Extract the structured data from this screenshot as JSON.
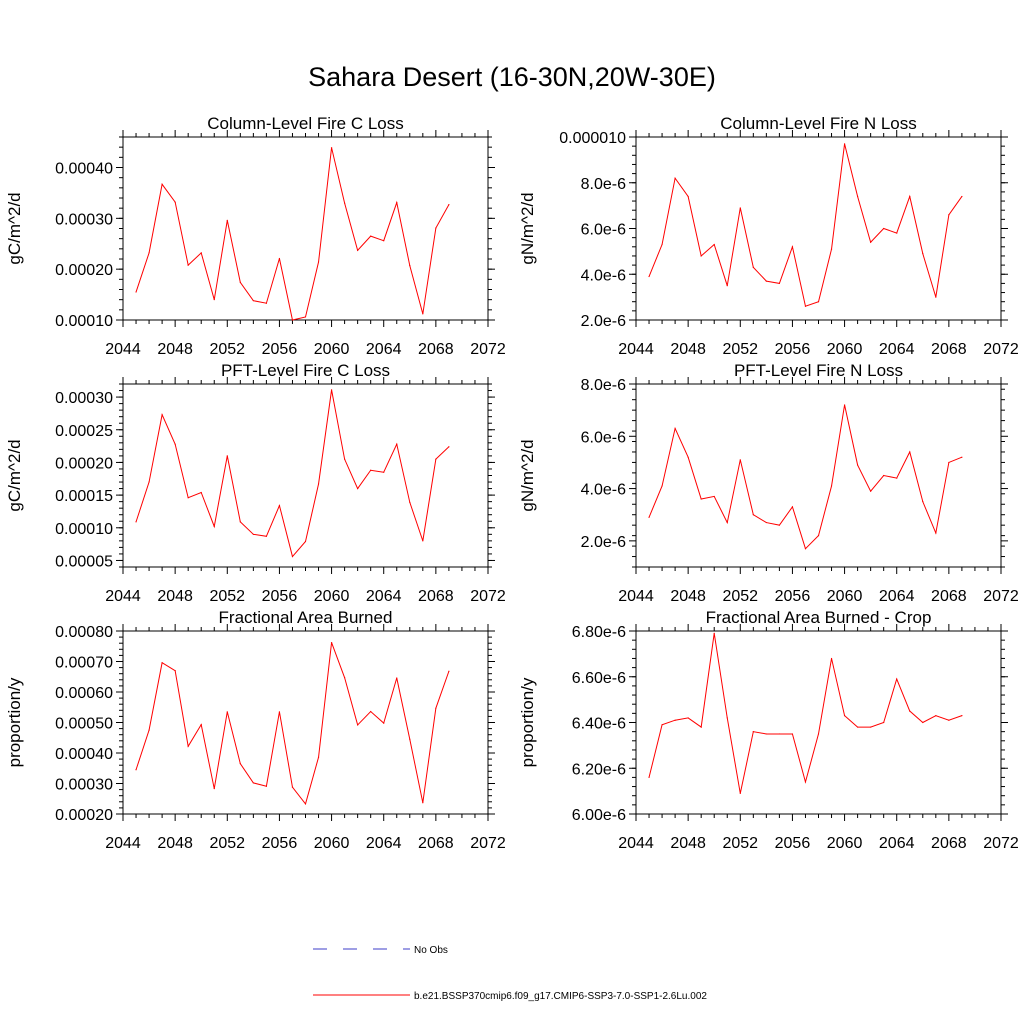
{
  "main_title": "Sahara Desert (16-30N,20W-30E)",
  "legend": {
    "obs_label": "No Obs",
    "model_label": "b.e21.BSSP370cmip6.f09_g17.CMIP6-SSP3-7.0-SSP1-2.6Lu.002",
    "obs_color": "#3c3cc8",
    "model_color": "#ff0000"
  },
  "chart_data": [
    {
      "type": "line",
      "title": "Column-Level Fire C Loss",
      "ylabel": "gC/m^2/d",
      "xlabel": "",
      "xlim": [
        2044,
        2072
      ],
      "ylim": [
        0.0001,
        0.00046
      ],
      "xticks": [
        2044,
        2048,
        2052,
        2056,
        2060,
        2064,
        2068,
        2072
      ],
      "yticks": [
        0.0001,
        0.0002,
        0.0003,
        0.0004
      ],
      "ytick_labels": [
        "0.00010",
        "0.00020",
        "0.00030",
        "0.00040"
      ],
      "x": [
        2045,
        2046,
        2047,
        2048,
        2049,
        2050,
        2051,
        2052,
        2053,
        2054,
        2055,
        2056,
        2057,
        2058,
        2059,
        2060,
        2061,
        2062,
        2063,
        2064,
        2065,
        2066,
        2067,
        2068,
        2069
      ],
      "series": [
        {
          "color": "#ff0000",
          "values": [
            0.000155,
            0.000232,
            0.000367,
            0.000332,
            0.000208,
            0.000232,
            0.00014,
            0.000296,
            0.000174,
            0.000138,
            0.000133,
            0.000221,
            0.0001,
            0.000106,
            0.000214,
            0.000439,
            0.00033,
            0.000237,
            0.000265,
            0.000256,
            0.000331,
            0.000207,
            0.000112,
            0.000281,
            0.000327
          ]
        }
      ]
    },
    {
      "type": "line",
      "title": "Column-Level Fire N Loss",
      "ylabel": "gN/m^2/d",
      "xlabel": "",
      "xlim": [
        2044,
        2072
      ],
      "ylim": [
        2e-06,
        1e-05
      ],
      "xticks": [
        2044,
        2048,
        2052,
        2056,
        2060,
        2064,
        2068,
        2072
      ],
      "yticks": [
        2e-06,
        4e-06,
        6e-06,
        8e-06,
        1e-05
      ],
      "ytick_labels": [
        "2.0e-6",
        "4.0e-6",
        "6.0e-6",
        "8.0e-6",
        "0.000010"
      ],
      "x": [
        2045,
        2046,
        2047,
        2048,
        2049,
        2050,
        2051,
        2052,
        2053,
        2054,
        2055,
        2056,
        2057,
        2058,
        2059,
        2060,
        2061,
        2062,
        2063,
        2064,
        2065,
        2066,
        2067,
        2068,
        2069
      ],
      "series": [
        {
          "color": "#ff0000",
          "values": [
            3.9e-06,
            5.3e-06,
            8.2e-06,
            7.4e-06,
            4.8e-06,
            5.3e-06,
            3.5e-06,
            6.9e-06,
            4.3e-06,
            3.7e-06,
            3.6e-06,
            5.2e-06,
            2.6e-06,
            2.8e-06,
            5.1e-06,
            9.7e-06,
            7.4e-06,
            5.4e-06,
            6e-06,
            5.8e-06,
            7.4e-06,
            4.9e-06,
            3e-06,
            6.6e-06,
            7.4e-06
          ]
        }
      ]
    },
    {
      "type": "line",
      "title": "PFT-Level Fire C Loss",
      "ylabel": "gC/m^2/d",
      "xlabel": "",
      "xlim": [
        2044,
        2072
      ],
      "ylim": [
        4e-05,
        0.00032
      ],
      "xticks": [
        2044,
        2048,
        2052,
        2056,
        2060,
        2064,
        2068,
        2072
      ],
      "yticks": [
        5e-05,
        0.0001,
        0.00015,
        0.0002,
        0.00025,
        0.0003
      ],
      "ytick_labels": [
        "0.00005",
        "0.00010",
        "0.00015",
        "0.00020",
        "0.00025",
        "0.00030"
      ],
      "x": [
        2045,
        2046,
        2047,
        2048,
        2049,
        2050,
        2051,
        2052,
        2053,
        2054,
        2055,
        2056,
        2057,
        2058,
        2059,
        2060,
        2061,
        2062,
        2063,
        2064,
        2065,
        2066,
        2067,
        2068,
        2069
      ],
      "series": [
        {
          "color": "#ff0000",
          "values": [
            0.000109,
            0.00017,
            0.000273,
            0.000228,
            0.000146,
            0.000154,
            0.000102,
            0.00021,
            0.000109,
            9e-05,
            8.7e-05,
            0.000134,
            5.6e-05,
            7.9e-05,
            0.000167,
            0.000311,
            0.000205,
            0.00016,
            0.000188,
            0.000185,
            0.000228,
            0.000139,
            8e-05,
            0.000205,
            0.000224
          ]
        }
      ]
    },
    {
      "type": "line",
      "title": "PFT-Level Fire N Loss",
      "ylabel": "gN/m^2/d",
      "xlabel": "",
      "xlim": [
        2044,
        2072
      ],
      "ylim": [
        1e-06,
        8e-06
      ],
      "xticks": [
        2044,
        2048,
        2052,
        2056,
        2060,
        2064,
        2068,
        2072
      ],
      "yticks": [
        2e-06,
        4e-06,
        6e-06,
        8e-06
      ],
      "ytick_labels": [
        "2.0e-6",
        "4.0e-6",
        "6.0e-6",
        "8.0e-6"
      ],
      "x": [
        2045,
        2046,
        2047,
        2048,
        2049,
        2050,
        2051,
        2052,
        2053,
        2054,
        2055,
        2056,
        2057,
        2058,
        2059,
        2060,
        2061,
        2062,
        2063,
        2064,
        2065,
        2066,
        2067,
        2068,
        2069
      ],
      "series": [
        {
          "color": "#ff0000",
          "values": [
            2.9e-06,
            4.1e-06,
            6.3e-06,
            5.2e-06,
            3.6e-06,
            3.7e-06,
            2.7e-06,
            5.1e-06,
            3e-06,
            2.7e-06,
            2.6e-06,
            3.3e-06,
            1.7e-06,
            2.2e-06,
            4.1e-06,
            7.2e-06,
            4.9e-06,
            3.9e-06,
            4.5e-06,
            4.4e-06,
            5.4e-06,
            3.5e-06,
            2.3e-06,
            5e-06,
            5.2e-06
          ]
        }
      ]
    },
    {
      "type": "line",
      "title": "Fractional Area Burned",
      "ylabel": "proportion/y",
      "xlabel": "",
      "xlim": [
        2044,
        2072
      ],
      "ylim": [
        0.0002,
        0.0008
      ],
      "xticks": [
        2044,
        2048,
        2052,
        2056,
        2060,
        2064,
        2068,
        2072
      ],
      "yticks": [
        0.0002,
        0.0003,
        0.0004,
        0.0005,
        0.0006,
        0.0007,
        0.0008
      ],
      "ytick_labels": [
        "0.00020",
        "0.00030",
        "0.00040",
        "0.00050",
        "0.00060",
        "0.00070",
        "0.00080"
      ],
      "x": [
        2045,
        2046,
        2047,
        2048,
        2049,
        2050,
        2051,
        2052,
        2053,
        2054,
        2055,
        2056,
        2057,
        2058,
        2059,
        2060,
        2061,
        2062,
        2063,
        2064,
        2065,
        2066,
        2067,
        2068,
        2069
      ],
      "series": [
        {
          "color": "#ff0000",
          "values": [
            0.000345,
            0.000475,
            0.000696,
            0.00067,
            0.000422,
            0.000493,
            0.000283,
            0.000535,
            0.000365,
            0.000302,
            0.000291,
            0.000535,
            0.000288,
            0.000233,
            0.000386,
            0.000762,
            0.000647,
            0.000492,
            0.000536,
            0.000498,
            0.000646,
            0.000445,
            0.000237,
            0.000547,
            0.000668
          ]
        }
      ]
    },
    {
      "type": "line",
      "title": "Fractional Area Burned - Crop",
      "ylabel": "proportion/y",
      "xlabel": "",
      "xlim": [
        2044,
        2072
      ],
      "ylim": [
        6e-06,
        6.8e-06
      ],
      "xticks": [
        2044,
        2048,
        2052,
        2056,
        2060,
        2064,
        2068,
        2072
      ],
      "yticks": [
        6e-06,
        6.2e-06,
        6.4e-06,
        6.6e-06,
        6.8e-06
      ],
      "ytick_labels": [
        "6.00e-6",
        "6.20e-6",
        "6.40e-6",
        "6.60e-6",
        "6.80e-6"
      ],
      "x": [
        2045,
        2046,
        2047,
        2048,
        2049,
        2050,
        2051,
        2052,
        2053,
        2054,
        2055,
        2056,
        2057,
        2058,
        2059,
        2060,
        2061,
        2062,
        2063,
        2064,
        2065,
        2066,
        2067,
        2068,
        2069
      ],
      "series": [
        {
          "color": "#ff0000",
          "values": [
            6.16e-06,
            6.39e-06,
            6.41e-06,
            6.42e-06,
            6.38e-06,
            6.79e-06,
            6.42e-06,
            6.09e-06,
            6.36e-06,
            6.35e-06,
            6.35e-06,
            6.35e-06,
            6.14e-06,
            6.35e-06,
            6.68e-06,
            6.43e-06,
            6.38e-06,
            6.38e-06,
            6.4e-06,
            6.59e-06,
            6.45e-06,
            6.4e-06,
            6.43e-06,
            6.41e-06,
            6.43e-06
          ]
        }
      ]
    }
  ]
}
